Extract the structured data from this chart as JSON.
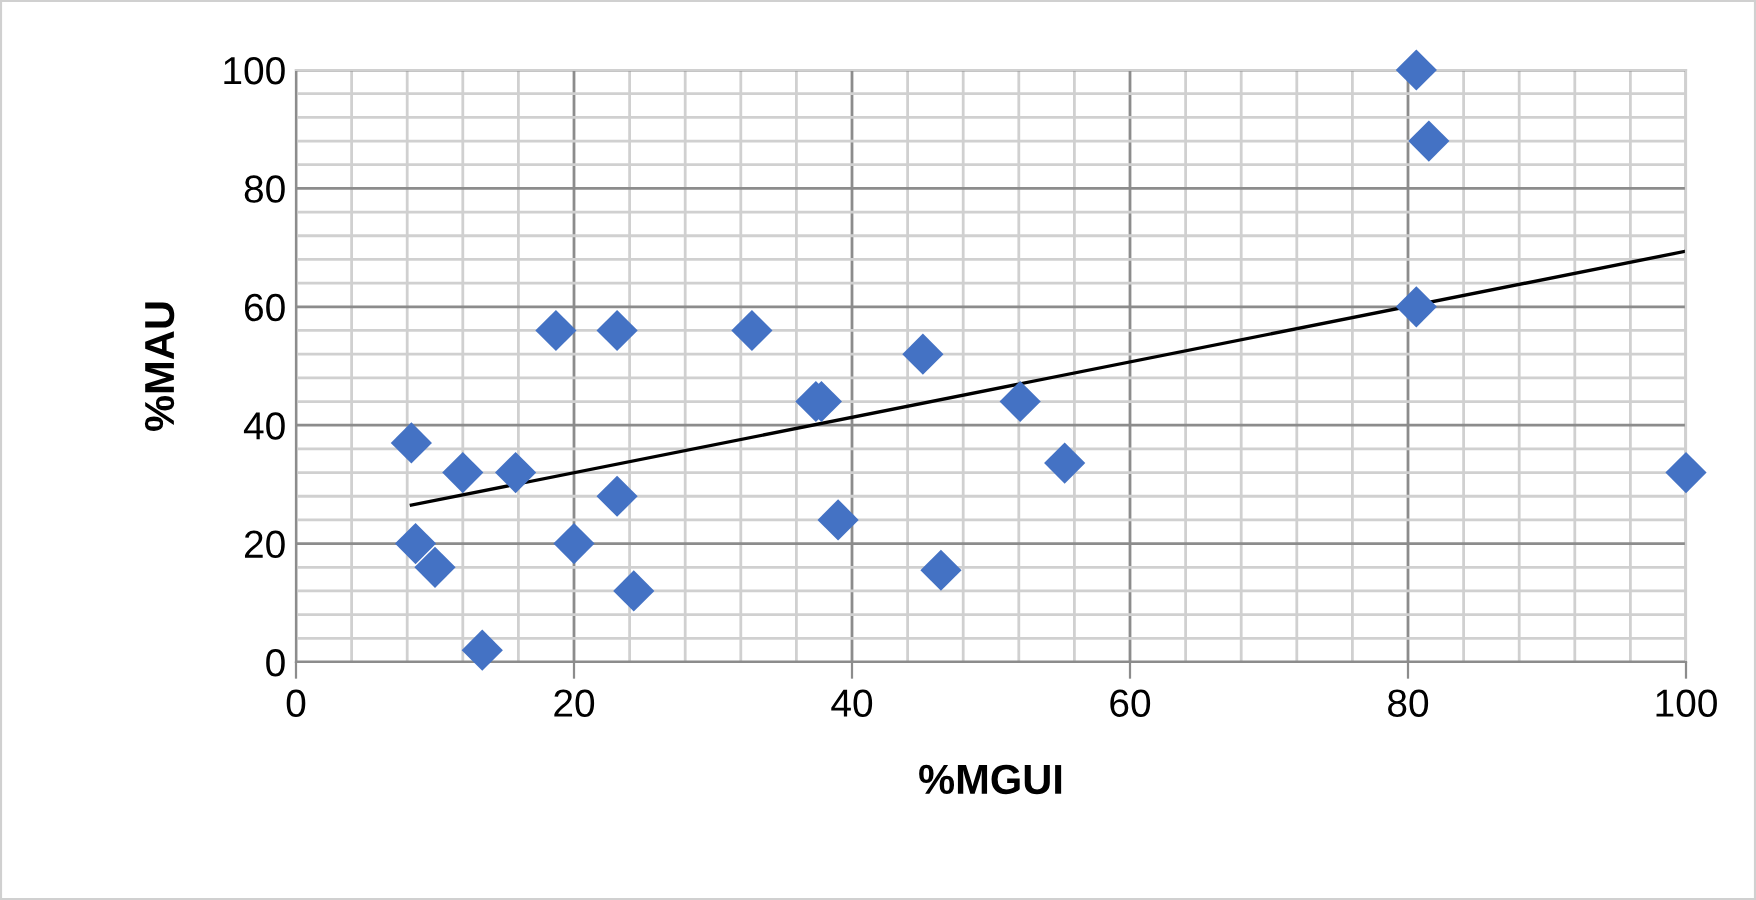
{
  "chart_data": {
    "type": "scatter",
    "xlabel": "%MGUI",
    "ylabel": "%MAU",
    "grid": true,
    "xlim": [
      0,
      100
    ],
    "ylim": [
      0,
      100
    ],
    "xticks": [
      0,
      20,
      40,
      60,
      80,
      100
    ],
    "yticks": [
      0,
      20,
      40,
      60,
      80,
      100
    ],
    "series": [
      {
        "marker": "diamond",
        "color": "#4472c4",
        "x": [
          8.3,
          8.6,
          10,
          12,
          15.8,
          18.7,
          20,
          23.1,
          23.1,
          24.3,
          13.4,
          32.8,
          37.4,
          37.8,
          39,
          45.1,
          46.4,
          52.1,
          55.3,
          80.6,
          81.5,
          80.6,
          100
        ],
        "values": [
          37,
          20,
          16,
          32,
          32,
          56,
          20,
          56,
          28,
          12,
          2,
          56,
          44,
          44,
          24,
          52,
          15.5,
          44,
          33.6,
          100,
          88,
          60,
          32
        ]
      },
      {
        "type": "line",
        "color": "#000000",
        "x": [
          8.3,
          100
        ],
        "values": [
          26.5,
          69.4
        ]
      }
    ]
  }
}
